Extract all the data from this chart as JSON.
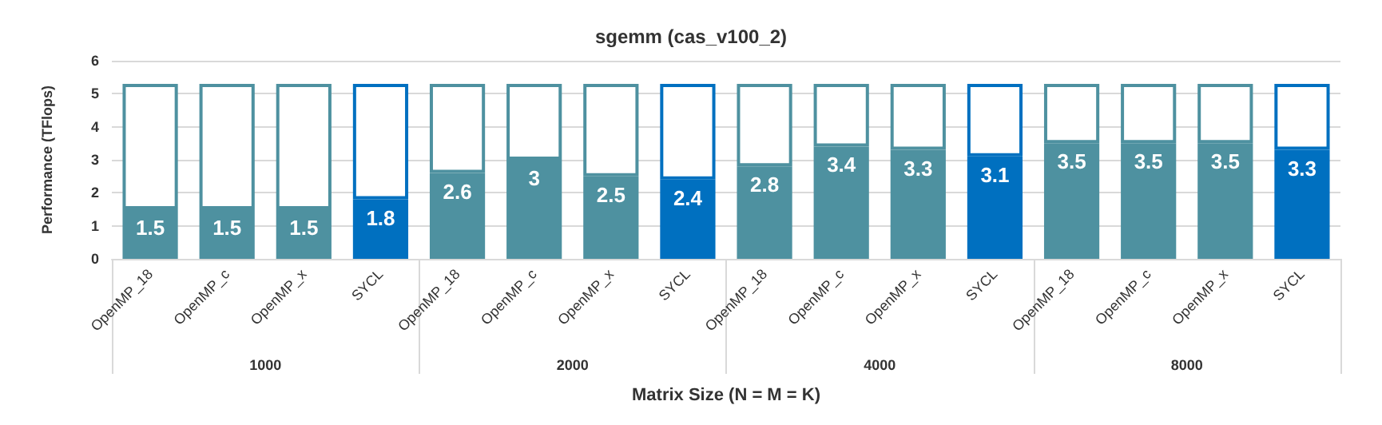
{
  "chart_data": {
    "type": "bar",
    "stacked": true,
    "title": "sgemm (cas_v100_2)",
    "xlabel": "Matrix Size (N = M = K)",
    "ylabel": "Performance (TFlops)",
    "categories": [
      "OpenMP_18",
      "OpenMP_c",
      "OpenMP_x",
      "SYCL",
      "OpenMP_18",
      "OpenMP_c",
      "OpenMP_x",
      "SYCL",
      "OpenMP_18",
      "OpenMP_c",
      "OpenMP_x",
      "SYCL",
      "OpenMP_18",
      "OpenMP_c",
      "OpenMP_x",
      "SYCL"
    ],
    "annotations": [
      "1000",
      "2000",
      "4000",
      "8000"
    ],
    "series": [
      {
        "colors": [
          "#4e91a0",
          "#4e91a0",
          "#4e91a0",
          "#0070c0",
          "#4e91a0",
          "#4e91a0",
          "#4e91a0",
          "#0070c0",
          "#4e91a0",
          "#4e91a0",
          "#4e91a0",
          "#0070c0",
          "#4e91a0",
          "#4e91a0",
          "#4e91a0",
          "#0070c0"
        ],
        "values": [
          1.5,
          1.5,
          1.5,
          1.8,
          2.6,
          3,
          2.5,
          2.4,
          2.8,
          3.4,
          3.3,
          3.1,
          3.5,
          3.5,
          3.5,
          3.3
        ],
        "value_labels": [
          "1.5",
          "1.5",
          "1.5",
          "1.8",
          "2.6",
          "3",
          "2.5",
          "2.4",
          "2.8",
          "3.4",
          "3.3",
          "3.1",
          "3.5",
          "3.5",
          "3.5",
          "3.3"
        ]
      },
      {
        "colors": [
          "#4e91a0",
          "#4e91a0",
          "#4e91a0",
          "#0070c0",
          "#4e91a0",
          "#4e91a0",
          "#4e91a0",
          "#0070c0",
          "#4e91a0",
          "#4e91a0",
          "#4e91a0",
          "#0070c0",
          "#4e91a0",
          "#4e91a0",
          "#4e91a0",
          "#0070c0"
        ],
        "values": [
          3.8,
          3.8,
          3.8,
          3.5,
          2.7,
          2.3,
          2.8,
          2.9,
          2.5,
          1.9,
          2,
          2.2,
          1.8,
          1.8,
          1.8,
          2
        ]
      }
    ],
    "ylim": [
      0,
      6
    ],
    "yticks": [
      0,
      1,
      2,
      3,
      4,
      5,
      6
    ],
    "grid": "y"
  }
}
